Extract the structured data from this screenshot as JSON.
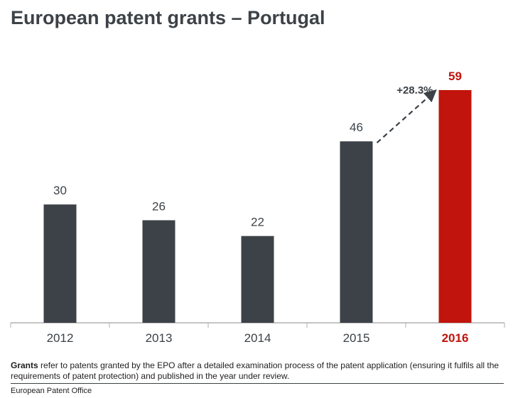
{
  "title": "European patent grants – Portugal",
  "chart_data": {
    "type": "bar",
    "title": "European patent grants – Portugal",
    "categories": [
      "2012",
      "2013",
      "2014",
      "2015",
      "2016"
    ],
    "values": [
      30,
      26,
      22,
      46,
      59
    ],
    "highlight_index": 4,
    "ylim": [
      0,
      60
    ],
    "xlabel": "",
    "ylabel": "",
    "grid": false,
    "annotation": {
      "text": "+28.3%",
      "from_category": "2015",
      "to_category": "2016"
    },
    "colors": {
      "bar": "#3c4247",
      "highlight": "#c0140c",
      "label": "#3c4247",
      "axis": "#b0b0b0"
    }
  },
  "footnote": {
    "bold": "Grants",
    "text": " refer to patents granted by the EPO after a detailed examination process of the patent application (ensuring it fulfils all the requirements of patent protection) and published in the year under review."
  },
  "source": "European Patent Office"
}
